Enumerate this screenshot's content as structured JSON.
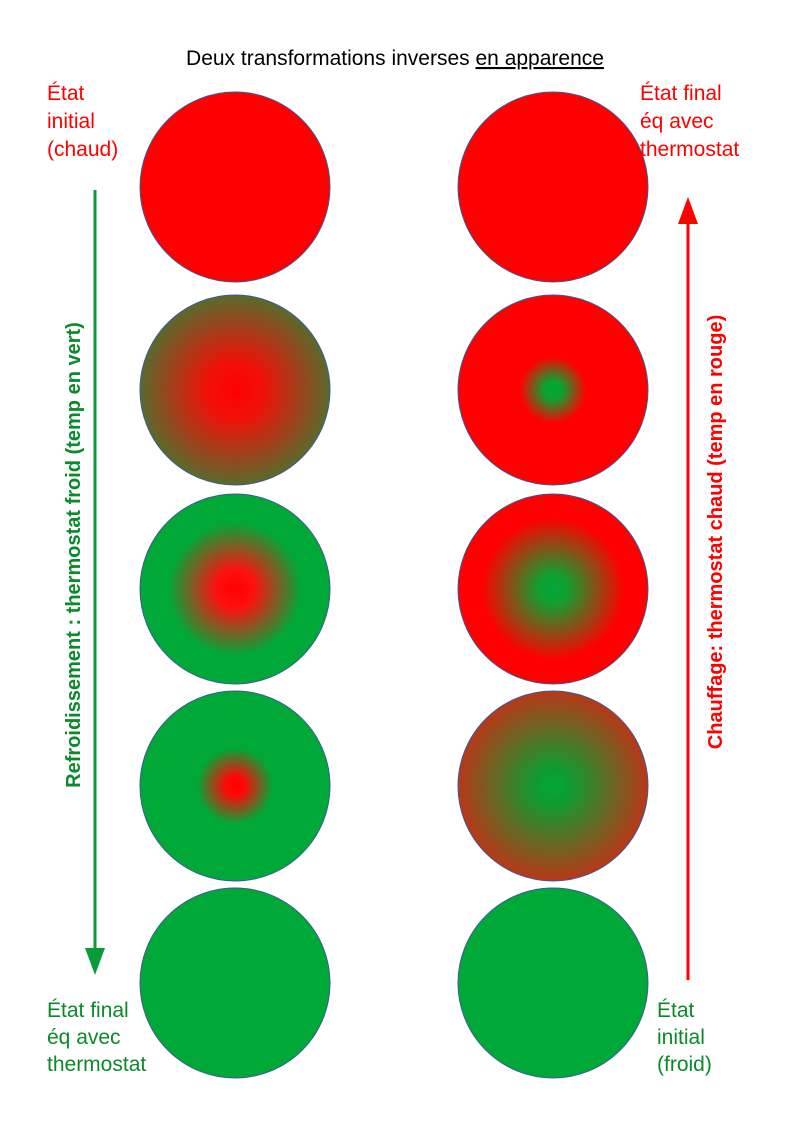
{
  "title": {
    "text": "Deux transformations inverses",
    "emphasis": "en apparence"
  },
  "left": {
    "start_label": [
      "État",
      "initial",
      "(chaud)"
    ],
    "end_label": [
      "État final",
      "éq avec",
      "thermostat"
    ],
    "arrow_label": "Refroidissement : thermostat froid (temp en vert)"
  },
  "right": {
    "start_label": [
      "État",
      "initial",
      "(froid)"
    ],
    "end_label": [
      "État final",
      "éq avec",
      "thermostat"
    ],
    "arrow_label": "Chauffage: thermostat chaud (temp en rouge)"
  }
}
